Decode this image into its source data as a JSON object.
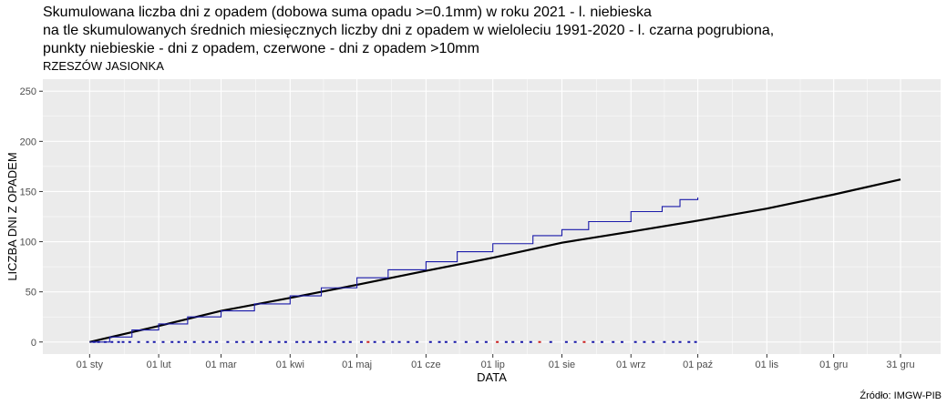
{
  "title_lines": [
    "Skumulowana liczba dni z opadem (dobowa suma opadu >=0.1mm) w roku 2021 - l. niebieska",
    "na tle skumulowanych średnich miesięcznych liczby dni z opadem w wieloleciu 1991-2020 - l. czarna pogrubiona,",
    "punkty niebieskie - dni z opadem, czerwone - dni z opadem >10mm"
  ],
  "subtitle": "RZESZÓW  JASIONKA",
  "caption": "Źródło: IMGW-PIB",
  "colors": {
    "panel": "#ebebeb",
    "grid": "#ffffff",
    "observed": "#1a1aaa",
    "normal": "#000000",
    "rain_day": "#1a1aaa",
    "heavy_rain_day": "#cc2222"
  },
  "chart_data": {
    "type": "line",
    "xlabel": "DATA",
    "ylabel": "LICZBA DNI Z OPADEM",
    "x_ticks": [
      {
        "label": "01 sty",
        "day": 1
      },
      {
        "label": "01 lut",
        "day": 32
      },
      {
        "label": "01 mar",
        "day": 60
      },
      {
        "label": "01 kwi",
        "day": 91
      },
      {
        "label": "01 maj",
        "day": 121
      },
      {
        "label": "01 cze",
        "day": 152
      },
      {
        "label": "01 lip",
        "day": 182
      },
      {
        "label": "01 sie",
        "day": 213
      },
      {
        "label": "01 wrz",
        "day": 244
      },
      {
        "label": "01 paź",
        "day": 274
      },
      {
        "label": "01 lis",
        "day": 305
      },
      {
        "label": "01 gru",
        "day": 335
      },
      {
        "label": "31 gru",
        "day": 365
      }
    ],
    "y_ticks": [
      0,
      50,
      100,
      150,
      200,
      250
    ],
    "xlim": [
      -20,
      383
    ],
    "ylim": [
      -12,
      262
    ],
    "grid": true,
    "series": [
      {
        "style": "step-line",
        "points": [
          [
            1,
            0
          ],
          [
            10,
            5
          ],
          [
            20,
            12
          ],
          [
            32,
            18
          ],
          [
            45,
            25
          ],
          [
            60,
            31
          ],
          [
            75,
            38
          ],
          [
            91,
            46
          ],
          [
            105,
            54
          ],
          [
            121,
            64
          ],
          [
            135,
            72
          ],
          [
            152,
            80
          ],
          [
            166,
            90
          ],
          [
            182,
            98
          ],
          [
            200,
            106
          ],
          [
            213,
            112
          ],
          [
            225,
            120
          ],
          [
            244,
            130
          ],
          [
            258,
            135
          ],
          [
            266,
            142
          ],
          [
            274,
            144
          ]
        ]
      },
      {
        "style": "line",
        "points": [
          [
            1,
            0
          ],
          [
            32,
            16
          ],
          [
            60,
            31
          ],
          [
            91,
            44
          ],
          [
            121,
            57
          ],
          [
            152,
            71
          ],
          [
            182,
            84
          ],
          [
            213,
            99
          ],
          [
            244,
            110
          ],
          [
            274,
            121
          ],
          [
            305,
            133
          ],
          [
            335,
            147
          ],
          [
            365,
            162
          ]
        ]
      }
    ],
    "rain_day_marks": [
      {
        "day": 3,
        "heavy": false
      },
      {
        "day": 5,
        "heavy": false
      },
      {
        "day": 8,
        "heavy": false
      },
      {
        "day": 11,
        "heavy": false
      },
      {
        "day": 14,
        "heavy": false
      },
      {
        "day": 16,
        "heavy": false
      },
      {
        "day": 19,
        "heavy": false
      },
      {
        "day": 23,
        "heavy": false
      },
      {
        "day": 27,
        "heavy": false
      },
      {
        "day": 30,
        "heavy": false
      },
      {
        "day": 34,
        "heavy": false
      },
      {
        "day": 38,
        "heavy": false
      },
      {
        "day": 41,
        "heavy": false
      },
      {
        "day": 44,
        "heavy": false
      },
      {
        "day": 48,
        "heavy": false
      },
      {
        "day": 52,
        "heavy": false
      },
      {
        "day": 55,
        "heavy": false
      },
      {
        "day": 58,
        "heavy": false
      },
      {
        "day": 63,
        "heavy": false
      },
      {
        "day": 67,
        "heavy": false
      },
      {
        "day": 70,
        "heavy": false
      },
      {
        "day": 74,
        "heavy": false
      },
      {
        "day": 78,
        "heavy": false
      },
      {
        "day": 82,
        "heavy": false
      },
      {
        "day": 86,
        "heavy": false
      },
      {
        "day": 89,
        "heavy": false
      },
      {
        "day": 94,
        "heavy": false
      },
      {
        "day": 97,
        "heavy": false
      },
      {
        "day": 100,
        "heavy": false
      },
      {
        "day": 104,
        "heavy": false
      },
      {
        "day": 107,
        "heavy": false
      },
      {
        "day": 111,
        "heavy": false
      },
      {
        "day": 115,
        "heavy": false
      },
      {
        "day": 118,
        "heavy": false
      },
      {
        "day": 123,
        "heavy": false
      },
      {
        "day": 126,
        "heavy": true
      },
      {
        "day": 129,
        "heavy": false
      },
      {
        "day": 133,
        "heavy": false
      },
      {
        "day": 137,
        "heavy": false
      },
      {
        "day": 140,
        "heavy": false
      },
      {
        "day": 144,
        "heavy": false
      },
      {
        "day": 148,
        "heavy": false
      },
      {
        "day": 154,
        "heavy": false
      },
      {
        "day": 158,
        "heavy": false
      },
      {
        "day": 161,
        "heavy": false
      },
      {
        "day": 165,
        "heavy": false
      },
      {
        "day": 170,
        "heavy": false
      },
      {
        "day": 175,
        "heavy": false
      },
      {
        "day": 179,
        "heavy": false
      },
      {
        "day": 184,
        "heavy": true
      },
      {
        "day": 188,
        "heavy": false
      },
      {
        "day": 191,
        "heavy": false
      },
      {
        "day": 195,
        "heavy": false
      },
      {
        "day": 199,
        "heavy": false
      },
      {
        "day": 203,
        "heavy": true
      },
      {
        "day": 208,
        "heavy": false
      },
      {
        "day": 215,
        "heavy": false
      },
      {
        "day": 219,
        "heavy": false
      },
      {
        "day": 223,
        "heavy": true
      },
      {
        "day": 227,
        "heavy": false
      },
      {
        "day": 231,
        "heavy": false
      },
      {
        "day": 236,
        "heavy": false
      },
      {
        "day": 240,
        "heavy": false
      },
      {
        "day": 246,
        "heavy": false
      },
      {
        "day": 250,
        "heavy": false
      },
      {
        "day": 254,
        "heavy": false
      },
      {
        "day": 259,
        "heavy": false
      },
      {
        "day": 263,
        "heavy": false
      },
      {
        "day": 266,
        "heavy": false
      },
      {
        "day": 270,
        "heavy": false
      },
      {
        "day": 273,
        "heavy": false
      }
    ]
  }
}
